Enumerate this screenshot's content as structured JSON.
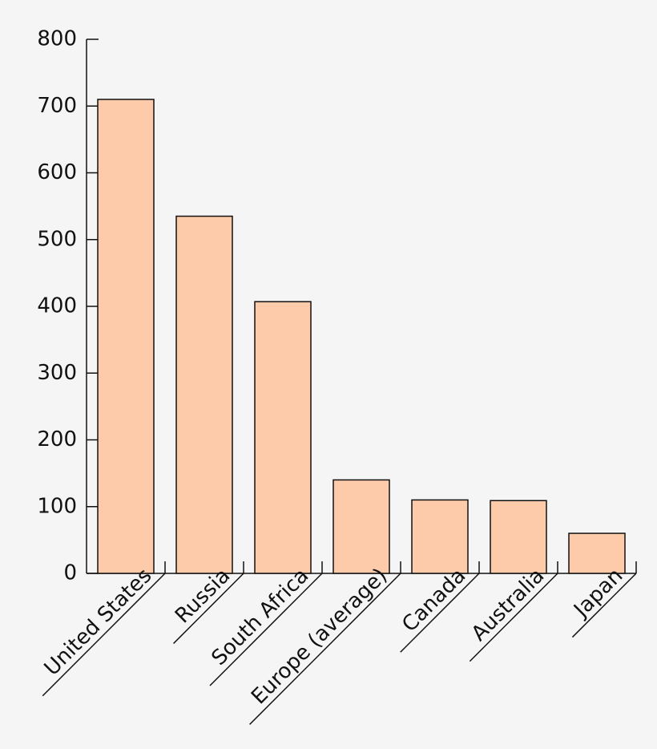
{
  "chart_data": {
    "type": "bar",
    "categories": [
      "United States",
      "Russia",
      "South Africa",
      "Europe (average)",
      "Canada",
      "Australia",
      "Japan"
    ],
    "values": [
      710,
      535,
      407,
      140,
      110,
      109,
      60
    ],
    "color": "#fdcbaa",
    "ylim": [
      0,
      800
    ],
    "yticks": [
      0,
      100,
      200,
      300,
      400,
      500,
      600,
      700,
      800
    ]
  }
}
